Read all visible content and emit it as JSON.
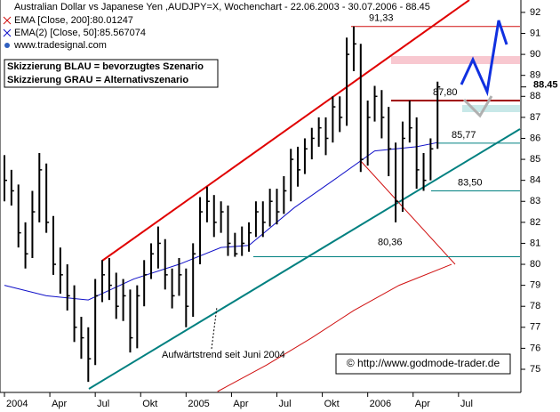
{
  "chart_data": {
    "type": "ohlc",
    "title": "Australian Dollar vs Japanese Yen ,AUDJPY=X, Wochenchart - 22.06.2003 - 30.07.2006 - 88.45",
    "source": "www.tradesignal.com",
    "notes": [
      "Skizzierung BLAU = bevorzugtes Szenario",
      "Skizzierung GRAU = Alternativszenario"
    ],
    "trend_label": "Aufwärtstrend seit Juni 2004",
    "copyright": "© http://www.godmode-trader.de",
    "last_label": "88.45",
    "last_value": 88.45,
    "x": [
      0,
      2,
      4,
      6,
      8,
      10,
      12,
      14,
      16,
      18,
      20,
      22,
      24,
      26,
      28,
      30,
      32,
      34,
      36,
      38,
      40,
      42,
      44,
      46,
      48,
      50,
      52,
      54,
      56,
      58,
      60,
      62,
      64,
      66,
      68,
      70,
      72,
      74,
      76,
      78,
      80,
      82,
      84,
      86,
      88,
      90,
      92,
      94,
      96,
      98,
      100,
      102,
      104,
      106,
      108,
      110,
      112,
      114,
      116,
      118,
      120,
      122,
      124
    ],
    "high": [
      85.2,
      84.5,
      83.8,
      82.0,
      83.5,
      85.3,
      84.8,
      82.3,
      80.8,
      80.0,
      79.0,
      77.5,
      77.0,
      79.3,
      80.2,
      80.3,
      79.6,
      79.3,
      78.8,
      79.0,
      80.2,
      81.0,
      81.8,
      81.2,
      79.8,
      80.3,
      79.8,
      81.0,
      83.2,
      83.7,
      83.3,
      83.0,
      82.8,
      81.5,
      81.8,
      82.0,
      83.0,
      83.0,
      83.6,
      83.6,
      84.2,
      85.5,
      85.6,
      86.0,
      86.5,
      87.0,
      87.0,
      88.0,
      88.0,
      90.8,
      91.33,
      90.5,
      87.8,
      88.5,
      88.3,
      87.5,
      85.8,
      86.8,
      87.8,
      87.0,
      85.3,
      86.0,
      88.7
    ],
    "low": [
      83.0,
      82.8,
      80.8,
      79.8,
      80.3,
      82.0,
      81.5,
      79.5,
      78.6,
      77.8,
      76.3,
      75.5,
      74.4,
      75.2,
      78.2,
      78.3,
      77.4,
      77.3,
      75.8,
      76.0,
      78.0,
      79.3,
      79.8,
      78.8,
      77.9,
      78.5,
      77.0,
      77.5,
      80.0,
      82.0,
      81.3,
      81.5,
      80.4,
      80.36,
      80.4,
      80.6,
      81.3,
      81.3,
      81.8,
      81.9,
      82.4,
      83.0,
      83.7,
      84.3,
      85.0,
      85.6,
      85.2,
      85.8,
      86.3,
      86.6,
      89.2,
      84.4,
      84.7,
      86.8,
      86.0,
      84.2,
      82.0,
      82.5,
      85.8,
      83.6,
      83.5,
      84.0,
      85.5
    ],
    "close": [
      84.0,
      83.5,
      81.5,
      80.5,
      82.5,
      84.5,
      82.0,
      80.0,
      79.5,
      78.5,
      77.0,
      76.5,
      75.5,
      78.5,
      79.5,
      79.0,
      78.0,
      78.5,
      76.5,
      78.5,
      79.5,
      80.5,
      81.0,
      79.5,
      78.5,
      79.5,
      78.0,
      80.5,
      82.5,
      83.0,
      82.0,
      82.5,
      81.0,
      80.5,
      81.0,
      81.5,
      82.5,
      82.0,
      83.0,
      82.5,
      83.5,
      85.0,
      84.5,
      85.5,
      86.0,
      86.5,
      86.0,
      87.5,
      87.0,
      90.0,
      90.5,
      85.0,
      87.0,
      88.0,
      87.0,
      85.5,
      83.0,
      86.0,
      86.5,
      84.5,
      84.0,
      85.5,
      88.45
    ],
    "color": "#000000",
    "series": [
      {
        "name": "EMA [Close, 200]:80.01247",
        "color": "#d01010",
        "x": [
          61,
          75,
          88,
          100,
          113,
          128
        ],
        "values": [
          73.94,
          75.2,
          76.5,
          77.8,
          79.0,
          80.0
        ]
      },
      {
        "name": "EMA(2) [Close, 50]:85.567074",
        "color": "#1010c8",
        "x": [
          0,
          12,
          24,
          37,
          50,
          62,
          70,
          83,
          95,
          106,
          118,
          124
        ],
        "values": [
          79.0,
          78.5,
          78.3,
          79.3,
          80.0,
          80.8,
          80.9,
          82.7,
          84.1,
          85.4,
          85.6,
          85.8
        ]
      }
    ],
    "levels": [
      {
        "value": 91.33,
        "label": "91,33",
        "color": "#d01010"
      },
      {
        "value": 87.8,
        "label": "87,80",
        "color": "#a00000"
      },
      {
        "value": 85.77,
        "label": "85,77",
        "color": "#008080"
      },
      {
        "value": 83.5,
        "label": "83,50",
        "color": "#008080"
      },
      {
        "value": 80.36,
        "label": "80,36",
        "color": "#008080"
      }
    ],
    "xlim": [
      -1.27,
      147.6
    ],
    "xticks": [
      {
        "value": 0,
        "label": "2004"
      },
      {
        "value": 13,
        "label": "Apr"
      },
      {
        "value": 26,
        "label": "Jul"
      },
      {
        "value": 39,
        "label": "Okt"
      },
      {
        "value": 52,
        "label": "2005"
      },
      {
        "value": 65,
        "label": "Apr"
      },
      {
        "value": 78,
        "label": "Jul"
      },
      {
        "value": 91,
        "label": "Okt"
      },
      {
        "value": 104,
        "label": "2006"
      },
      {
        "value": 117,
        "label": "Apr"
      },
      {
        "value": 130,
        "label": "Jul"
      }
    ],
    "ylim": [
      73.94,
      92.59
    ],
    "yticks": [
      75,
      76,
      77,
      78,
      79,
      80,
      81,
      82,
      83,
      84,
      85,
      86,
      87,
      88,
      89,
      90,
      91,
      92
    ]
  }
}
